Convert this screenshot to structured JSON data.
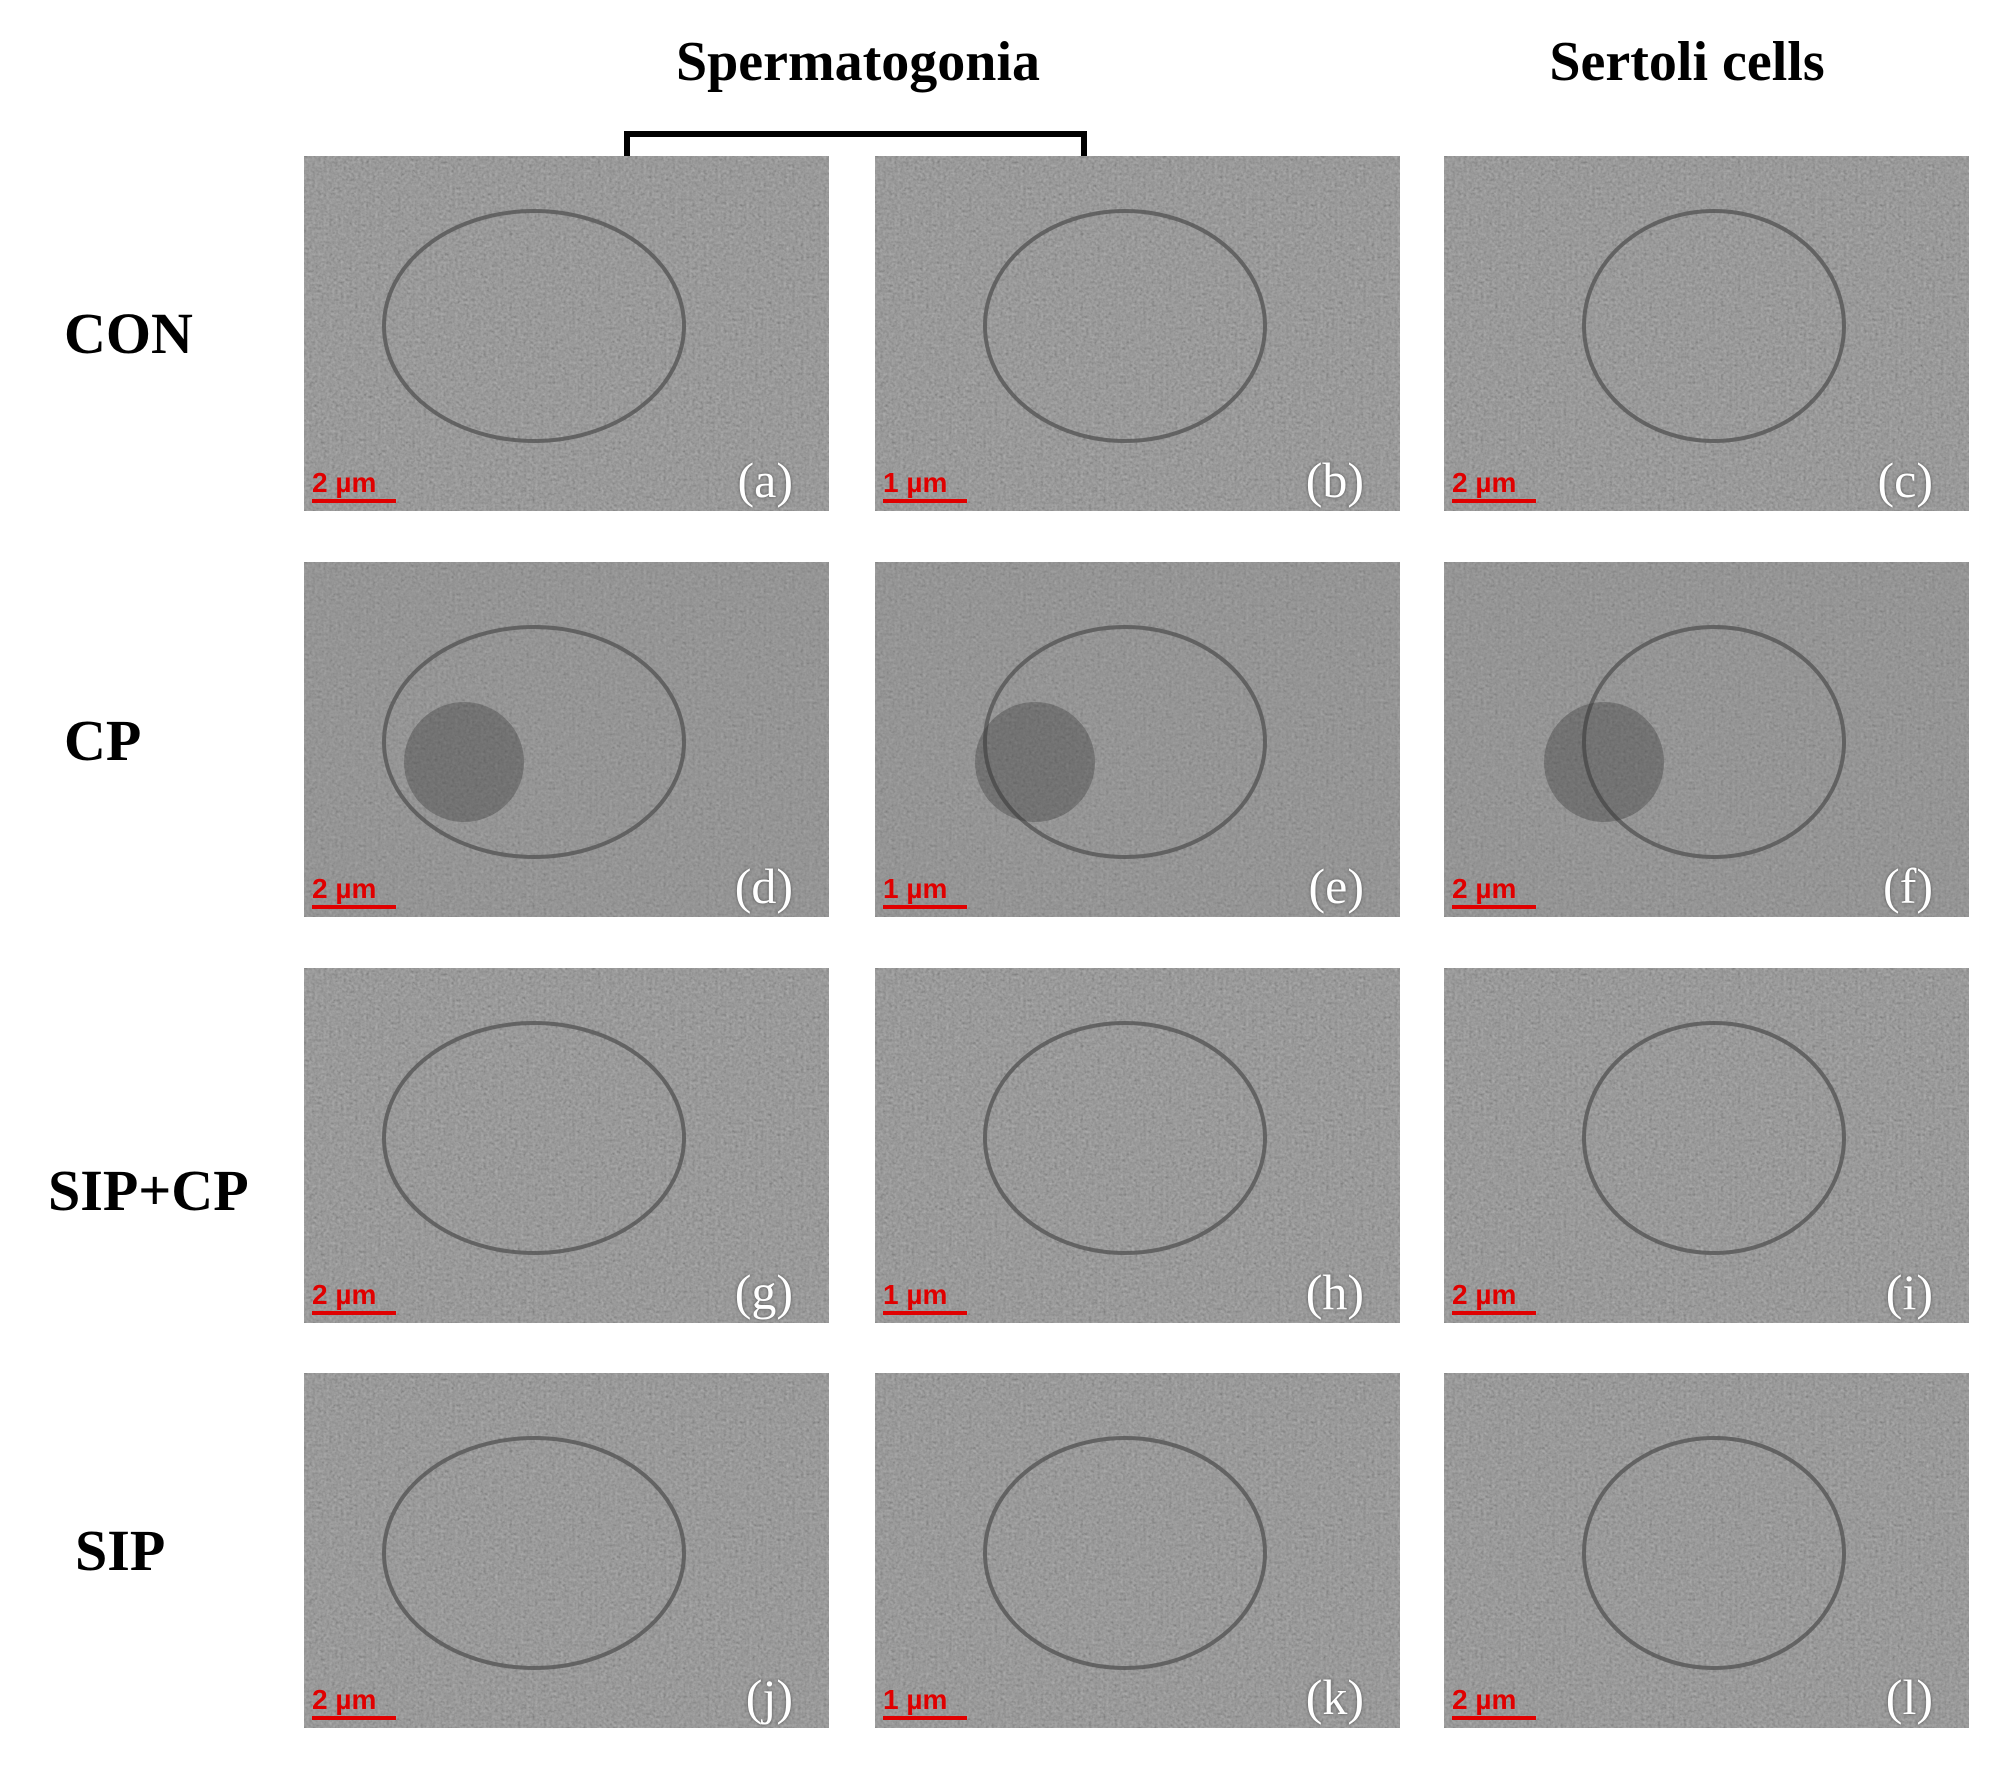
{
  "column_titles": {
    "spermatogonia": "Spermatogonia",
    "sertoli": "Sertoli cells"
  },
  "row_labels": [
    "CON",
    "CP",
    "SIP+CP",
    "SIP"
  ],
  "panels": [
    {
      "letter": "(a)",
      "scale_bar": "2 µm"
    },
    {
      "letter": "(b)",
      "scale_bar": "1 µm"
    },
    {
      "letter": "(c)",
      "scale_bar": "2 µm"
    },
    {
      "letter": "(d)",
      "scale_bar": "2 µm"
    },
    {
      "letter": "(e)",
      "scale_bar": "1 µm"
    },
    {
      "letter": "(f)",
      "scale_bar": "2 µm"
    },
    {
      "letter": "(g)",
      "scale_bar": "2 µm"
    },
    {
      "letter": "(h)",
      "scale_bar": "1 µm"
    },
    {
      "letter": "(i)",
      "scale_bar": "2 µm"
    },
    {
      "letter": "(j)",
      "scale_bar": "2 µm"
    },
    {
      "letter": "(k)",
      "scale_bar": "1 µm"
    },
    {
      "letter": "(l)",
      "scale_bar": "2 µm"
    }
  ],
  "colors": {
    "scale_bar": "#e00000",
    "panel_letter": "#ffffff"
  }
}
